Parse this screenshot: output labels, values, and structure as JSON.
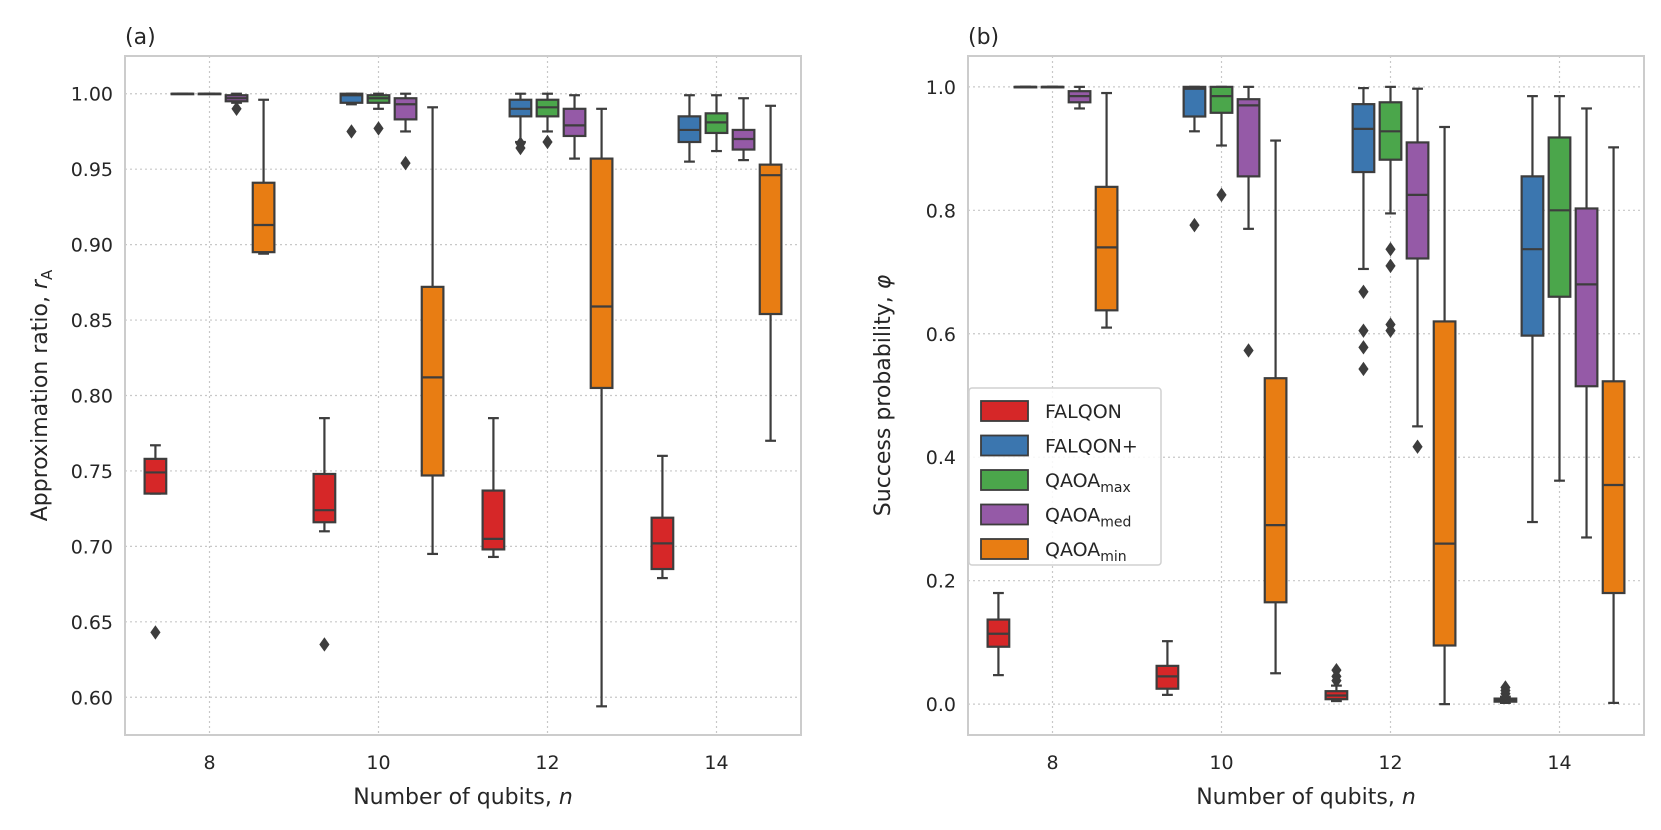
{
  "chart_data": [
    {
      "type": "box",
      "panel_label": "(a)",
      "xlabel": {
        "text": "Number of qubits, ",
        "var": "n"
      },
      "ylabel": {
        "text": "Approximation ratio, ",
        "var": "r",
        "sub": "A"
      },
      "ylim": [
        0.575,
        1.025
      ],
      "yticks": [
        0.6,
        0.65,
        0.7,
        0.75,
        0.8,
        0.85,
        0.9,
        0.95,
        1.0
      ],
      "ytick_labels": [
        "0.60",
        "0.65",
        "0.70",
        "0.75",
        "0.80",
        "0.85",
        "0.90",
        "0.95",
        "1.00"
      ],
      "categories": [
        "8",
        "10",
        "12",
        "14"
      ],
      "grid": true,
      "series": [
        {
          "name": "FALQON",
          "boxes": [
            {
              "x": "8",
              "whislo": 0.735,
              "q1": 0.735,
              "med": 0.749,
              "q3": 0.758,
              "whishi": 0.767,
              "fliers": [
                0.643
              ]
            },
            {
              "x": "10",
              "whislo": 0.71,
              "q1": 0.716,
              "med": 0.724,
              "q3": 0.748,
              "whishi": 0.785,
              "fliers": [
                0.635
              ]
            },
            {
              "x": "12",
              "whislo": 0.693,
              "q1": 0.698,
              "med": 0.705,
              "q3": 0.737,
              "whishi": 0.785,
              "fliers": []
            },
            {
              "x": "14",
              "whislo": 0.679,
              "q1": 0.685,
              "med": 0.702,
              "q3": 0.719,
              "whishi": 0.76,
              "fliers": []
            }
          ]
        },
        {
          "name": "FALQON+",
          "boxes": [
            {
              "x": "8",
              "whislo": 1.0,
              "q1": 1.0,
              "med": 1.0,
              "q3": 1.0,
              "whishi": 1.0,
              "fliers": []
            },
            {
              "x": "10",
              "whislo": 0.993,
              "q1": 0.994,
              "med": 0.999,
              "q3": 1.0,
              "whishi": 1.0,
              "fliers": [
                0.975
              ]
            },
            {
              "x": "12",
              "whislo": 0.968,
              "q1": 0.985,
              "med": 0.99,
              "q3": 0.996,
              "whishi": 1.0,
              "fliers": [
                0.964,
                0.967
              ]
            },
            {
              "x": "14",
              "whislo": 0.955,
              "q1": 0.968,
              "med": 0.976,
              "q3": 0.985,
              "whishi": 0.999,
              "fliers": []
            }
          ]
        },
        {
          "name": "QAOA_max",
          "boxes": [
            {
              "x": "8",
              "whislo": 1.0,
              "q1": 1.0,
              "med": 1.0,
              "q3": 1.0,
              "whishi": 1.0,
              "fliers": []
            },
            {
              "x": "10",
              "whislo": 0.99,
              "q1": 0.994,
              "med": 0.997,
              "q3": 0.999,
              "whishi": 1.0,
              "fliers": [
                0.977
              ]
            },
            {
              "x": "12",
              "whislo": 0.975,
              "q1": 0.985,
              "med": 0.991,
              "q3": 0.996,
              "whishi": 1.0,
              "fliers": [
                0.968
              ]
            },
            {
              "x": "14",
              "whislo": 0.962,
              "q1": 0.974,
              "med": 0.981,
              "q3": 0.987,
              "whishi": 0.999,
              "fliers": []
            }
          ]
        },
        {
          "name": "QAOA_med",
          "boxes": [
            {
              "x": "8",
              "whislo": 0.994,
              "q1": 0.995,
              "med": 0.997,
              "q3": 0.999,
              "whishi": 1.0,
              "fliers": [
                0.99
              ]
            },
            {
              "x": "10",
              "whislo": 0.975,
              "q1": 0.983,
              "med": 0.993,
              "q3": 0.997,
              "whishi": 1.0,
              "fliers": [
                0.954
              ]
            },
            {
              "x": "12",
              "whislo": 0.957,
              "q1": 0.972,
              "med": 0.979,
              "q3": 0.99,
              "whishi": 0.999,
              "fliers": []
            },
            {
              "x": "14",
              "whislo": 0.956,
              "q1": 0.963,
              "med": 0.97,
              "q3": 0.976,
              "whishi": 0.997,
              "fliers": []
            }
          ]
        },
        {
          "name": "QAOA_min",
          "boxes": [
            {
              "x": "8",
              "whislo": 0.894,
              "q1": 0.895,
              "med": 0.913,
              "q3": 0.941,
              "whishi": 0.996,
              "fliers": []
            },
            {
              "x": "10",
              "whislo": 0.695,
              "q1": 0.747,
              "med": 0.812,
              "q3": 0.872,
              "whishi": 0.991,
              "fliers": []
            },
            {
              "x": "12",
              "whislo": 0.594,
              "q1": 0.805,
              "med": 0.859,
              "q3": 0.957,
              "whishi": 0.99,
              "fliers": []
            },
            {
              "x": "14",
              "whislo": 0.77,
              "q1": 0.854,
              "med": 0.946,
              "q3": 0.953,
              "whishi": 0.992,
              "fliers": []
            }
          ]
        }
      ]
    },
    {
      "type": "box",
      "panel_label": "(b)",
      "xlabel": {
        "text": "Number of qubits, ",
        "var": "n"
      },
      "ylabel": {
        "text": "Success probability, ",
        "var": "φ",
        "sub": ""
      },
      "ylim": [
        -0.05,
        1.05
      ],
      "yticks": [
        0.0,
        0.2,
        0.4,
        0.6,
        0.8,
        1.0
      ],
      "ytick_labels": [
        "0.0",
        "0.2",
        "0.4",
        "0.6",
        "0.8",
        "1.0"
      ],
      "categories": [
        "8",
        "10",
        "12",
        "14"
      ],
      "grid": true,
      "series": [
        {
          "name": "FALQON",
          "boxes": [
            {
              "x": "8",
              "whislo": 0.047,
              "q1": 0.093,
              "med": 0.114,
              "q3": 0.137,
              "whishi": 0.18,
              "fliers": []
            },
            {
              "x": "10",
              "whislo": 0.015,
              "q1": 0.025,
              "med": 0.045,
              "q3": 0.062,
              "whishi": 0.102,
              "fliers": []
            },
            {
              "x": "12",
              "whislo": 0.005,
              "q1": 0.008,
              "med": 0.014,
              "q3": 0.021,
              "whishi": 0.03,
              "fliers": [
                0.038,
                0.045,
                0.055
              ]
            },
            {
              "x": "14",
              "whislo": 0.002,
              "q1": 0.004,
              "med": 0.006,
              "q3": 0.009,
              "whishi": 0.012,
              "fliers": [
                0.017,
                0.022,
                0.027
              ]
            }
          ]
        },
        {
          "name": "FALQON+",
          "boxes": [
            {
              "x": "8",
              "whislo": 1.0,
              "q1": 1.0,
              "med": 1.0,
              "q3": 1.0,
              "whishi": 1.0,
              "fliers": []
            },
            {
              "x": "10",
              "whislo": 0.928,
              "q1": 0.952,
              "med": 0.997,
              "q3": 1.0,
              "whishi": 1.0,
              "fliers": [
                0.776
              ]
            },
            {
              "x": "12",
              "whislo": 0.705,
              "q1": 0.862,
              "med": 0.932,
              "q3": 0.972,
              "whishi": 0.998,
              "fliers": [
                0.543,
                0.578,
                0.605,
                0.668
              ]
            },
            {
              "x": "14",
              "whislo": 0.295,
              "q1": 0.597,
              "med": 0.737,
              "q3": 0.855,
              "whishi": 0.985,
              "fliers": []
            }
          ]
        },
        {
          "name": "QAOA_max",
          "boxes": [
            {
              "x": "8",
              "whislo": 1.0,
              "q1": 1.0,
              "med": 1.0,
              "q3": 1.0,
              "whishi": 1.0,
              "fliers": []
            },
            {
              "x": "10",
              "whislo": 0.905,
              "q1": 0.958,
              "med": 0.985,
              "q3": 1.0,
              "whishi": 1.0,
              "fliers": [
                0.825
              ]
            },
            {
              "x": "12",
              "whislo": 0.795,
              "q1": 0.882,
              "med": 0.928,
              "q3": 0.975,
              "whishi": 1.0,
              "fliers": [
                0.605,
                0.615,
                0.71,
                0.737
              ]
            },
            {
              "x": "14",
              "whislo": 0.362,
              "q1": 0.66,
              "med": 0.8,
              "q3": 0.918,
              "whishi": 0.985,
              "fliers": []
            }
          ]
        },
        {
          "name": "QAOA_med",
          "boxes": [
            {
              "x": "8",
              "whislo": 0.965,
              "q1": 0.975,
              "med": 0.985,
              "q3": 0.993,
              "whishi": 1.0,
              "fliers": []
            },
            {
              "x": "10",
              "whislo": 0.77,
              "q1": 0.855,
              "med": 0.97,
              "q3": 0.98,
              "whishi": 1.0,
              "fliers": [
                0.573
              ]
            },
            {
              "x": "12",
              "whislo": 0.45,
              "q1": 0.722,
              "med": 0.825,
              "q3": 0.91,
              "whishi": 0.997,
              "fliers": [
                0.417
              ]
            },
            {
              "x": "14",
              "whislo": 0.27,
              "q1": 0.515,
              "med": 0.68,
              "q3": 0.803,
              "whishi": 0.965,
              "fliers": []
            }
          ]
        },
        {
          "name": "QAOA_min",
          "boxes": [
            {
              "x": "8",
              "whislo": 0.61,
              "q1": 0.638,
              "med": 0.74,
              "q3": 0.838,
              "whishi": 0.99,
              "fliers": []
            },
            {
              "x": "10",
              "whislo": 0.05,
              "q1": 0.165,
              "med": 0.29,
              "q3": 0.528,
              "whishi": 0.913,
              "fliers": []
            },
            {
              "x": "12",
              "whislo": 0.0,
              "q1": 0.095,
              "med": 0.26,
              "q3": 0.62,
              "whishi": 0.935,
              "fliers": []
            },
            {
              "x": "14",
              "whislo": 0.002,
              "q1": 0.18,
              "med": 0.355,
              "q3": 0.523,
              "whishi": 0.902,
              "fliers": []
            }
          ]
        }
      ]
    }
  ],
  "legend": {
    "placement": "left (panel b)",
    "entries": [
      {
        "key": "FALQON",
        "base": "FALQON",
        "sub": ""
      },
      {
        "key": "FALQON+",
        "base": "FALQON+",
        "sub": ""
      },
      {
        "key": "QAOA_max",
        "base": "QAOA",
        "sub": "max"
      },
      {
        "key": "QAOA_med",
        "base": "QAOA",
        "sub": "med"
      },
      {
        "key": "QAOA_min",
        "base": "QAOA",
        "sub": "min"
      }
    ]
  },
  "colors": {
    "FALQON": "#d62728",
    "FALQON+": "#3b76af",
    "QAOA_max": "#4ba64b",
    "QAOA_med": "#955aa7",
    "QAOA_min": "#e87d13",
    "edge": "#3d3d3d",
    "grid": "#c8c8c8",
    "frame": "#cccccc"
  }
}
